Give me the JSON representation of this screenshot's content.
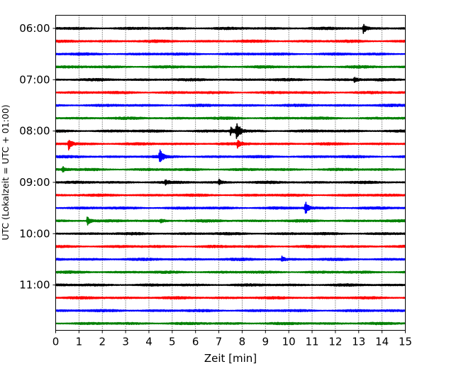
{
  "chart_data": {
    "type": "line",
    "title": "",
    "xlabel": "Zeit  [min]",
    "ylabel": "UTC (Lokalzeit = UTC + 01:00)",
    "xlim": [
      0,
      15
    ],
    "xticks": [
      "0",
      "1",
      "2",
      "3",
      "4",
      "5",
      "6",
      "7",
      "8",
      "9",
      "10",
      "11",
      "12",
      "13",
      "14",
      "15"
    ],
    "yticks": [
      "06:00",
      "07:00",
      "08:00",
      "09:00",
      "10:00",
      "11:00"
    ],
    "grid": "vertical dotted",
    "trace_minutes": 15,
    "colors": [
      "#000000",
      "#ff0000",
      "#0000ff",
      "#008000"
    ],
    "rows": [
      {
        "start": "06:00",
        "events": [
          {
            "t": 13.2,
            "amp": 0.7
          }
        ]
      },
      {
        "start": "06:15",
        "events": []
      },
      {
        "start": "06:30",
        "events": []
      },
      {
        "start": "06:45",
        "events": []
      },
      {
        "start": "07:00",
        "events": [
          {
            "t": 12.8,
            "amp": 0.4
          }
        ]
      },
      {
        "start": "07:15",
        "events": []
      },
      {
        "start": "07:30",
        "events": []
      },
      {
        "start": "07:45",
        "events": []
      },
      {
        "start": "08:00",
        "events": [
          {
            "t": 7.5,
            "amp": 0.6
          },
          {
            "t": 7.75,
            "amp": 2.0
          }
        ]
      },
      {
        "start": "08:15",
        "events": [
          {
            "t": 0.55,
            "amp": 0.9
          },
          {
            "t": 7.8,
            "amp": 0.5
          }
        ]
      },
      {
        "start": "08:30",
        "events": [
          {
            "t": 4.45,
            "amp": 1.2
          }
        ]
      },
      {
        "start": "08:45",
        "events": [
          {
            "t": 0.3,
            "amp": 0.4
          }
        ]
      },
      {
        "start": "09:00",
        "events": [
          {
            "t": 7.0,
            "amp": 0.45
          },
          {
            "t": 4.7,
            "amp": 0.3
          }
        ]
      },
      {
        "start": "09:15",
        "events": []
      },
      {
        "start": "09:30",
        "events": [
          {
            "t": 10.7,
            "amp": 1.1
          }
        ]
      },
      {
        "start": "09:45",
        "events": [
          {
            "t": 1.35,
            "amp": 0.8
          },
          {
            "t": 4.5,
            "amp": 0.35
          }
        ]
      },
      {
        "start": "10:00",
        "events": []
      },
      {
        "start": "10:15",
        "events": []
      },
      {
        "start": "10:30",
        "events": [
          {
            "t": 9.7,
            "amp": 0.4
          }
        ]
      },
      {
        "start": "10:45",
        "events": []
      },
      {
        "start": "11:00",
        "events": []
      },
      {
        "start": "11:15",
        "events": []
      },
      {
        "start": "11:30",
        "events": []
      },
      {
        "start": "11:45",
        "events": []
      }
    ]
  }
}
